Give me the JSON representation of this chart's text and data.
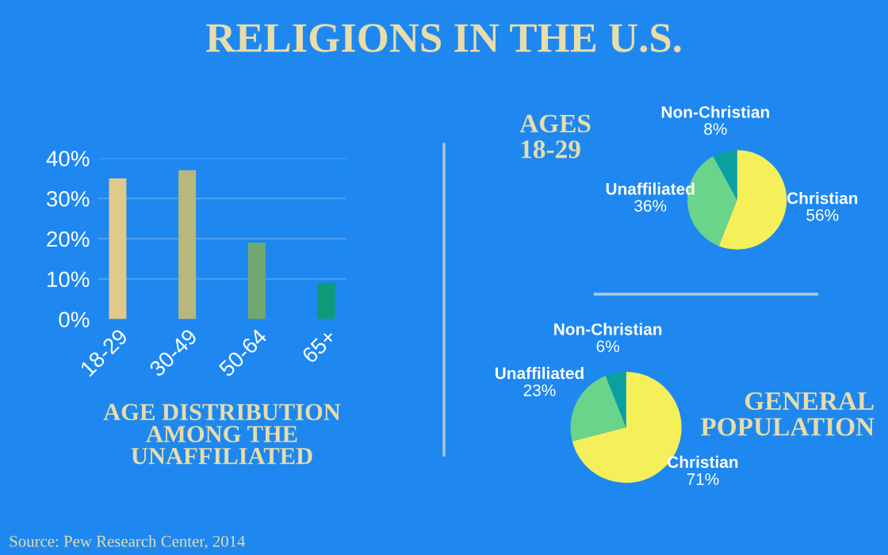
{
  "chart_data": [
    {
      "type": "bar",
      "title": "RELIGIONS IN THE U.S.",
      "xlabel": "AGE DISTRIBUTION\nAMONG THE\nUNAFFILIATED",
      "categories": [
        "18-29",
        "30-49",
        "50-64",
        "65+"
      ],
      "values": [
        35,
        37,
        19,
        9
      ],
      "colors": [
        "#e1c98a",
        "#b8b87a",
        "#72a870",
        "#0f9a78"
      ],
      "ylim": [
        0,
        40
      ],
      "yticks": [
        {
          "value": 0,
          "label": "0%"
        },
        {
          "value": 10,
          "label": "10%"
        },
        {
          "value": 20,
          "label": "20%"
        },
        {
          "value": 30,
          "label": "30%"
        },
        {
          "value": 40,
          "label": "40%"
        }
      ],
      "grid": "y",
      "annotations": [
        "Source: Pew Research Center, 2014"
      ]
    },
    {
      "type": "pie",
      "title": "AGES\n18-29",
      "categories": [
        "Christian",
        "Unaffiliated",
        "Non-Christian"
      ],
      "values": [
        56,
        36,
        8
      ],
      "colors": [
        "#f5f05a",
        "#6ad48a",
        "#0aa0a0"
      ],
      "value_labels": [
        "56%",
        "36%",
        "8%"
      ]
    },
    {
      "type": "pie",
      "title": "GENERAL\nPOPULATION",
      "categories": [
        "Christian",
        "Unaffiliated",
        "Non-Christian"
      ],
      "values": [
        71,
        23,
        6
      ],
      "colors": [
        "#f5f05a",
        "#6ad48a",
        "#0aa0a0"
      ],
      "value_labels": [
        "71%",
        "23%",
        "6%"
      ]
    }
  ]
}
